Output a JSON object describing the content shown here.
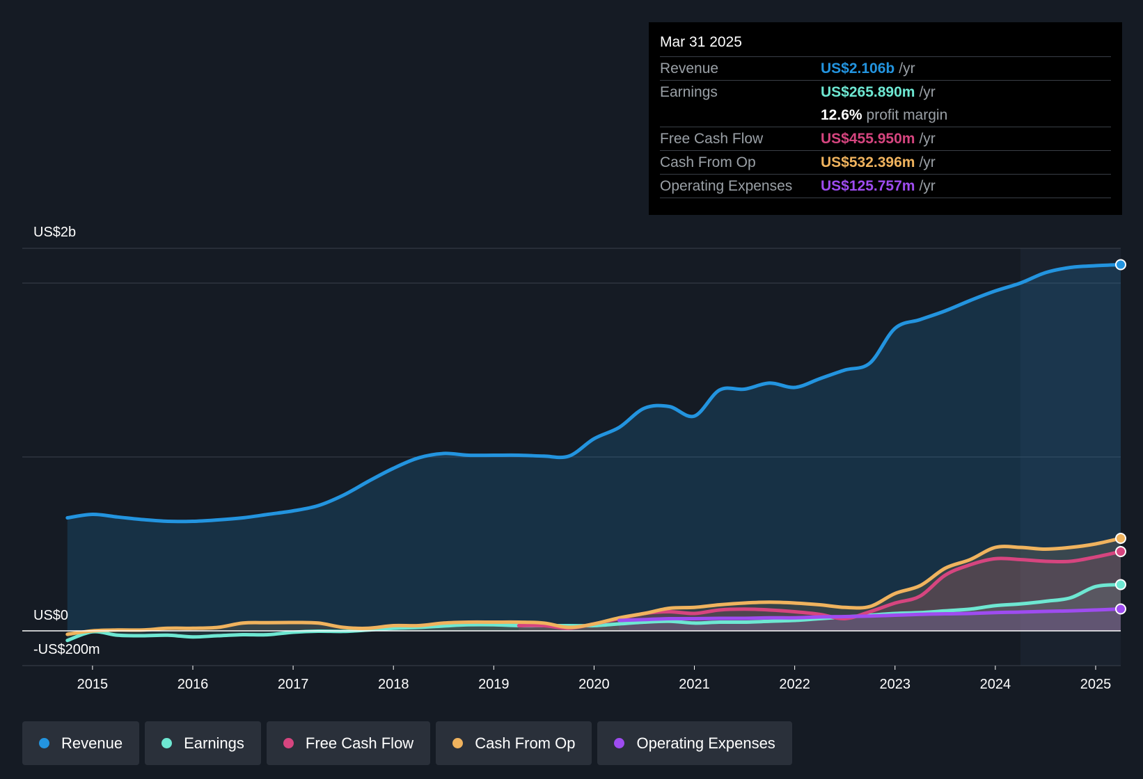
{
  "tooltip": {
    "date": "Mar 31 2025",
    "rows": [
      {
        "label": "Revenue",
        "value": "US$2.106b",
        "unit": "/yr",
        "color": "#2394df"
      },
      {
        "label": "Earnings",
        "value": "US$265.890m",
        "unit": "/yr",
        "color": "#6ee7d2"
      },
      {
        "label": "",
        "value": "12.6%",
        "unit": "profit margin",
        "color": "#ffffff"
      },
      {
        "label": "Free Cash Flow",
        "value": "US$455.950m",
        "unit": "/yr",
        "color": "#d6457f"
      },
      {
        "label": "Cash From Op",
        "value": "US$532.396m",
        "unit": "/yr",
        "color": "#f0b35e"
      },
      {
        "label": "Operating Expenses",
        "value": "US$125.757m",
        "unit": "/yr",
        "color": "#9e4cf0"
      }
    ]
  },
  "legend": {
    "items": [
      {
        "label": "Revenue",
        "color": "#2394df"
      },
      {
        "label": "Earnings",
        "color": "#6ee7d2"
      },
      {
        "label": "Free Cash Flow",
        "color": "#d6457f"
      },
      {
        "label": "Cash From Op",
        "color": "#f0b35e"
      },
      {
        "label": "Operating Expenses",
        "color": "#9e4cf0"
      }
    ]
  },
  "chart_data": {
    "type": "area",
    "title": "",
    "xlabel": "",
    "ylabel": "",
    "y_axis_labels": [
      "US$2b",
      "US$0",
      "-US$200m"
    ],
    "ylim": [
      -200,
      2200
    ],
    "xlim": [
      2014.3,
      2025.25
    ],
    "x_ticks": [
      "2015",
      "2016",
      "2017",
      "2018",
      "2019",
      "2020",
      "2021",
      "2022",
      "2023",
      "2024",
      "2025"
    ],
    "x_tick_values": [
      2015,
      2016,
      2017,
      2018,
      2019,
      2020,
      2021,
      2022,
      2023,
      2024,
      2025
    ],
    "highlight_start": 2024.25,
    "series": [
      {
        "name": "Revenue",
        "color": "#2394df",
        "x": [
          2014.75,
          2015.0,
          2015.25,
          2015.5,
          2015.75,
          2016.0,
          2016.25,
          2016.5,
          2016.75,
          2017.0,
          2017.25,
          2017.5,
          2017.75,
          2018.0,
          2018.25,
          2018.5,
          2018.75,
          2019.0,
          2019.25,
          2019.5,
          2019.75,
          2020.0,
          2020.25,
          2020.5,
          2020.75,
          2021.0,
          2021.25,
          2021.5,
          2021.75,
          2022.0,
          2022.25,
          2022.5,
          2022.75,
          2023.0,
          2023.25,
          2023.5,
          2023.75,
          2024.0,
          2024.25,
          2024.5,
          2024.75,
          2025.0,
          2025.25
        ],
        "values": [
          650,
          670,
          655,
          640,
          630,
          630,
          638,
          650,
          670,
          690,
          720,
          780,
          860,
          935,
          995,
          1020,
          1010,
          1010,
          1010,
          1005,
          1005,
          1105,
          1170,
          1280,
          1290,
          1235,
          1385,
          1390,
          1425,
          1400,
          1450,
          1500,
          1540,
          1740,
          1790,
          1840,
          1900,
          1955,
          2000,
          2060,
          2090,
          2100,
          2106
        ]
      },
      {
        "name": "Earnings",
        "color": "#6ee7d2",
        "x": [
          2014.75,
          2015.0,
          2015.25,
          2015.5,
          2015.75,
          2016.0,
          2016.25,
          2016.5,
          2016.75,
          2017.0,
          2017.25,
          2017.5,
          2017.75,
          2018.0,
          2018.25,
          2018.5,
          2018.75,
          2019.0,
          2019.25,
          2019.5,
          2019.75,
          2020.0,
          2020.25,
          2020.5,
          2020.75,
          2021.0,
          2021.25,
          2021.5,
          2021.75,
          2022.0,
          2022.25,
          2022.5,
          2022.75,
          2023.0,
          2023.25,
          2023.5,
          2023.75,
          2024.0,
          2024.25,
          2024.5,
          2024.75,
          2025.0,
          2025.25
        ],
        "values": [
          -55,
          -5,
          -25,
          -28,
          -25,
          -35,
          -28,
          -22,
          -22,
          -8,
          -2,
          -3,
          5,
          15,
          20,
          28,
          35,
          35,
          30,
          30,
          30,
          30,
          40,
          50,
          55,
          45,
          50,
          50,
          55,
          60,
          70,
          80,
          90,
          100,
          105,
          115,
          125,
          145,
          155,
          170,
          190,
          255,
          266
        ]
      },
      {
        "name": "Free Cash Flow",
        "color": "#d6457f",
        "x": [
          2019.25,
          2019.5,
          2019.75,
          2020.0,
          2020.25,
          2020.5,
          2020.75,
          2021.0,
          2021.25,
          2021.5,
          2021.75,
          2022.0,
          2022.25,
          2022.5,
          2022.75,
          2023.0,
          2023.25,
          2023.5,
          2023.75,
          2024.0,
          2024.25,
          2024.5,
          2024.75,
          2025.0,
          2025.25
        ],
        "values": [
          30,
          30,
          15,
          40,
          70,
          100,
          110,
          100,
          120,
          125,
          120,
          110,
          95,
          70,
          110,
          160,
          200,
          320,
          380,
          415,
          410,
          400,
          400,
          425,
          456
        ]
      },
      {
        "name": "Cash From Op",
        "color": "#f0b35e",
        "x": [
          2014.75,
          2015.0,
          2015.25,
          2015.5,
          2015.75,
          2016.0,
          2016.25,
          2016.5,
          2016.75,
          2017.0,
          2017.25,
          2017.5,
          2017.75,
          2018.0,
          2018.25,
          2018.5,
          2018.75,
          2019.0,
          2019.25,
          2019.5,
          2019.75,
          2020.0,
          2020.25,
          2020.5,
          2020.75,
          2021.0,
          2021.25,
          2021.5,
          2021.75,
          2022.0,
          2022.25,
          2022.5,
          2022.75,
          2023.0,
          2023.25,
          2023.5,
          2023.75,
          2024.0,
          2024.25,
          2024.5,
          2024.75,
          2025.0,
          2025.25
        ],
        "values": [
          -20,
          0,
          5,
          5,
          15,
          15,
          20,
          45,
          47,
          48,
          45,
          20,
          15,
          30,
          30,
          45,
          50,
          50,
          50,
          45,
          20,
          40,
          75,
          100,
          130,
          135,
          150,
          160,
          165,
          160,
          150,
          135,
          140,
          215,
          260,
          360,
          410,
          480,
          480,
          470,
          480,
          500,
          532
        ]
      },
      {
        "name": "Operating Expenses",
        "color": "#9e4cf0",
        "x": [
          2020.25,
          2020.5,
          2020.75,
          2021.0,
          2021.25,
          2021.5,
          2021.75,
          2022.0,
          2022.25,
          2022.5,
          2022.75,
          2023.0,
          2023.25,
          2023.5,
          2023.75,
          2024.0,
          2024.25,
          2024.5,
          2024.75,
          2025.0,
          2025.25
        ],
        "values": [
          60,
          65,
          70,
          70,
          72,
          72,
          75,
          75,
          80,
          82,
          85,
          90,
          95,
          98,
          100,
          105,
          108,
          112,
          115,
          120,
          126
        ]
      }
    ]
  }
}
